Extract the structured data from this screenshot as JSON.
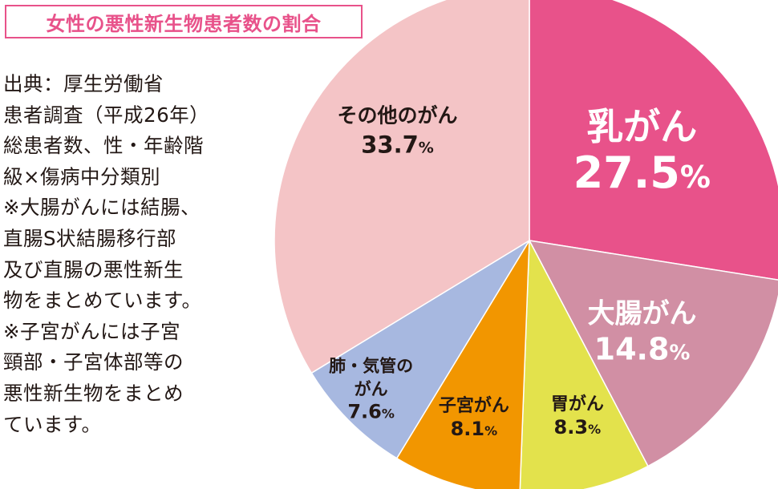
{
  "title": "女性の悪性新生物患者数の割合",
  "source_note": [
    "出典：厚生労働省",
    "患者調査（平成26年）",
    "総患者数、性・年齢階",
    "級×傷病中分類別",
    "※大腸がんには結腸、",
    "直腸S状結腸移行部",
    "及び直腸の悪性新生",
    "物をまとめています。",
    "※子宮がんには子宮",
    "頸部・子宮体部等の",
    "悪性新生物をまとめ",
    "ています。"
  ],
  "chart_data": {
    "type": "pie",
    "title": "女性の悪性新生物患者数の割合",
    "start_angle_deg": 0,
    "direction": "clockwise",
    "unit": "%",
    "slices": [
      {
        "label": "乳がん",
        "value": 27.5,
        "value_text": "27.5",
        "color": "#e8528a"
      },
      {
        "label": "大腸がん",
        "value": 14.8,
        "value_text": "14.8",
        "color": "#d18fa4"
      },
      {
        "label": "胃がん",
        "value": 8.3,
        "value_text": "8.3",
        "color": "#e3e24c"
      },
      {
        "label": "子宮がん",
        "value": 8.1,
        "value_text": "8.1",
        "color": "#f29600"
      },
      {
        "label": "肺・気管の|がん",
        "value": 7.6,
        "value_text": "7.6",
        "color": "#a7b8e0"
      },
      {
        "label": "その他のがん",
        "value": 33.7,
        "value_text": "33.7",
        "color": "#f4c4c6"
      }
    ]
  }
}
